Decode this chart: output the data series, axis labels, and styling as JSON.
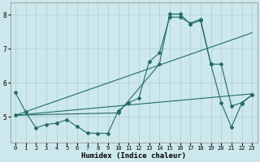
{
  "xlabel": "Humidex (Indice chaleur)",
  "bg_color": "#cce8ec",
  "grid_color": "#aaccd4",
  "line_color": "#236b63",
  "xlim": [
    -0.5,
    23.5
  ],
  "ylim": [
    4.25,
    8.35
  ],
  "yticks": [
    5,
    6,
    7,
    8
  ],
  "xticks": [
    0,
    1,
    2,
    3,
    4,
    5,
    6,
    7,
    8,
    9,
    10,
    11,
    12,
    13,
    14,
    15,
    16,
    17,
    18,
    19,
    20,
    21,
    22,
    23
  ],
  "line1_x": [
    0,
    1,
    2,
    3,
    4,
    5,
    6,
    7,
    8,
    9,
    10,
    11,
    12,
    13,
    14,
    15,
    16,
    17,
    18,
    19,
    20,
    21,
    22,
    23
  ],
  "line1_y": [
    5.72,
    5.15,
    4.68,
    4.78,
    4.82,
    4.92,
    4.72,
    4.53,
    4.52,
    4.52,
    5.18,
    5.42,
    5.55,
    6.62,
    6.88,
    7.93,
    7.93,
    7.75,
    7.87,
    6.55,
    5.42,
    4.7,
    5.4,
    5.65
  ],
  "line2_x": [
    0,
    10,
    14,
    15,
    16,
    17,
    18,
    19,
    20,
    21,
    22,
    23
  ],
  "line2_y": [
    5.05,
    5.12,
    6.55,
    8.02,
    8.02,
    7.73,
    7.83,
    6.55,
    6.55,
    5.32,
    5.42,
    5.65
  ],
  "line3_x": [
    0,
    23
  ],
  "line3_y": [
    5.05,
    7.47
  ],
  "line4_x": [
    0,
    23
  ],
  "line4_y": [
    5.05,
    5.68
  ]
}
